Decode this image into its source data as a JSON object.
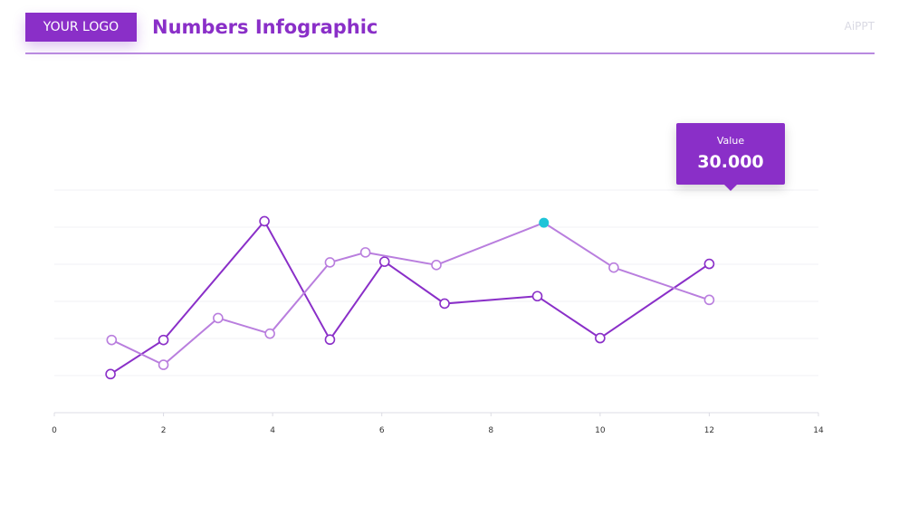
{
  "header": {
    "logo_text": "YOUR LOGO",
    "title": "Numbers Infographic",
    "brand": "AiPPT"
  },
  "tooltip": {
    "label": "Value",
    "value": "30.000"
  },
  "colors": {
    "primary": "#8a2fc8",
    "secondary": "#b97ede",
    "highlight": "#1ec4d8",
    "grid": "#f0f0f4",
    "axis": "#dcdce4"
  },
  "chart_data": {
    "type": "line",
    "xlim": [
      0,
      14
    ],
    "ylim": [
      0,
      6
    ],
    "xticks": [
      0,
      2,
      4,
      6,
      8,
      10,
      12,
      14
    ],
    "grid": true,
    "series": [
      {
        "color": "#8a2fc8",
        "points": [
          [
            1.03,
            1.04
          ],
          [
            2.0,
            1.96
          ],
          [
            3.85,
            5.16
          ],
          [
            5.05,
            1.97
          ],
          [
            6.05,
            4.07
          ],
          [
            7.15,
            2.94
          ],
          [
            8.85,
            3.14
          ],
          [
            10.0,
            2.01
          ],
          [
            12.0,
            4.01
          ]
        ]
      },
      {
        "color": "#b97ede",
        "points": [
          [
            1.05,
            1.96
          ],
          [
            2.0,
            1.29
          ],
          [
            3.0,
            2.55
          ],
          [
            3.95,
            2.13
          ],
          [
            5.05,
            4.05
          ],
          [
            5.7,
            4.32
          ],
          [
            7.0,
            3.98
          ],
          [
            8.97,
            5.12
          ],
          [
            10.25,
            3.91
          ],
          [
            12.0,
            3.04
          ]
        ],
        "highlight_index": 7
      }
    ]
  }
}
